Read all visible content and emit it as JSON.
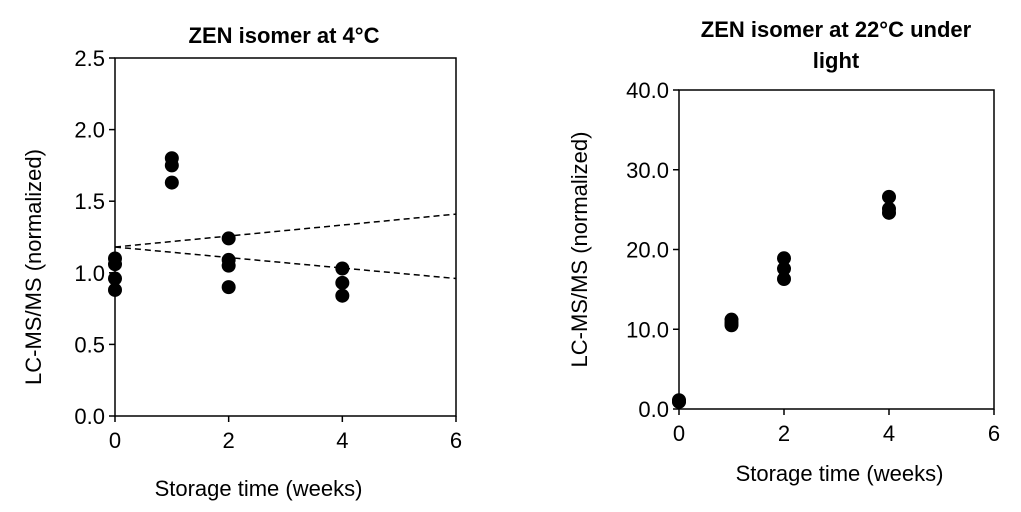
{
  "chart_data": [
    {
      "type": "scatter",
      "title": "ZEN isomer at 4°C",
      "xlabel": "Storage time (weeks)",
      "ylabel": "LC-MS/MS (normalized)",
      "xlim": [
        0,
        6
      ],
      "ylim": [
        0,
        2.5
      ],
      "xticks": [
        0,
        2,
        4,
        6
      ],
      "yticks": [
        0.0,
        0.5,
        1.0,
        1.5,
        2.0,
        2.5
      ],
      "xtick_labels": [
        "0",
        "2",
        "4",
        "6"
      ],
      "ytick_labels": [
        "0.0",
        "0.5",
        "1.0",
        "1.5",
        "2.0",
        "2.5"
      ],
      "grid": false,
      "points": [
        {
          "x": 0,
          "y": 1.1
        },
        {
          "x": 0,
          "y": 1.06
        },
        {
          "x": 0,
          "y": 0.96
        },
        {
          "x": 0,
          "y": 0.88
        },
        {
          "x": 1,
          "y": 1.8
        },
        {
          "x": 1,
          "y": 1.75
        },
        {
          "x": 1,
          "y": 1.63
        },
        {
          "x": 2,
          "y": 1.24
        },
        {
          "x": 2,
          "y": 1.09
        },
        {
          "x": 2,
          "y": 1.05
        },
        {
          "x": 2,
          "y": 0.9
        },
        {
          "x": 4,
          "y": 1.03
        },
        {
          "x": 4,
          "y": 0.93
        },
        {
          "x": 4,
          "y": 0.84
        }
      ],
      "lines": [
        {
          "style": "dashed",
          "x": [
            0,
            6
          ],
          "y": [
            1.18,
            1.41
          ]
        },
        {
          "style": "dashed",
          "x": [
            0,
            6
          ],
          "y": [
            1.18,
            0.96
          ]
        }
      ]
    },
    {
      "type": "scatter",
      "title": "ZEN isomer at 22°C under light",
      "title_lines": [
        "ZEN isomer at 22°C under",
        "light"
      ],
      "xlabel": "Storage time (weeks)",
      "ylabel": "LC-MS/MS (normalized)",
      "xlim": [
        0,
        6
      ],
      "ylim": [
        0,
        40
      ],
      "xticks": [
        0,
        2,
        4,
        6
      ],
      "yticks": [
        0,
        10,
        20,
        30,
        40
      ],
      "xtick_labels": [
        "0",
        "2",
        "4",
        "6"
      ],
      "ytick_labels": [
        "0.0",
        "10.0",
        "20.0",
        "30.0",
        "40.0"
      ],
      "grid": false,
      "points": [
        {
          "x": 0,
          "y": 1.0
        },
        {
          "x": 0,
          "y": 0.9
        },
        {
          "x": 0,
          "y": 1.1
        },
        {
          "x": 1,
          "y": 11.2
        },
        {
          "x": 1,
          "y": 10.8
        },
        {
          "x": 1,
          "y": 10.5
        },
        {
          "x": 2,
          "y": 18.9
        },
        {
          "x": 2,
          "y": 17.6
        },
        {
          "x": 2,
          "y": 16.3
        },
        {
          "x": 4,
          "y": 26.6
        },
        {
          "x": 4,
          "y": 25.1
        },
        {
          "x": 4,
          "y": 24.6
        }
      ],
      "lines": []
    }
  ]
}
